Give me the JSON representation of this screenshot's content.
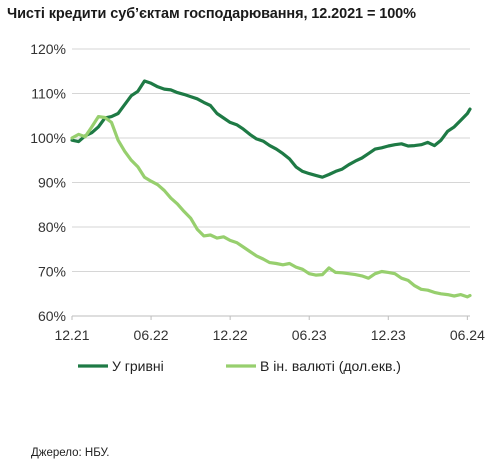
{
  "title": "Чисті кредити суб’єктам господарювання, 12.2021 = 100%",
  "source": "Джерело: НБУ.",
  "chart_data": {
    "type": "line",
    "title": "Чисті кредити суб’єктам господарювання, 12.2021 = 100%",
    "ylabel": "",
    "xlabel": "",
    "ylim": [
      60,
      120
    ],
    "yticks": [
      60,
      70,
      80,
      90,
      100,
      110,
      120
    ],
    "ytick_labels": [
      "60%",
      "70%",
      "80%",
      "90%",
      "100%",
      "110%",
      "120%"
    ],
    "xlim": [
      0,
      30.2
    ],
    "xticks": [
      0,
      6,
      12,
      18,
      24,
      30
    ],
    "xtick_labels": [
      "12.21",
      "06.22",
      "12.22",
      "06.23",
      "12.23",
      "06.24"
    ],
    "grid": "horizontal",
    "legend": "bottom",
    "series": [
      {
        "name": "У гривні",
        "color": "#1e7a45",
        "x": [
          0,
          0.5,
          1,
          1.5,
          2,
          2.5,
          3,
          3.5,
          4,
          4.5,
          5,
          5.5,
          6,
          6.5,
          7,
          7.5,
          8,
          8.5,
          9,
          9.5,
          10,
          10.5,
          11,
          11.5,
          12,
          12.5,
          13,
          13.5,
          14,
          14.5,
          15,
          15.5,
          16,
          16.5,
          17,
          17.5,
          18,
          18.5,
          19,
          19.5,
          20,
          20.5,
          21,
          21.5,
          22,
          22.5,
          23,
          23.5,
          24,
          24.5,
          25,
          25.5,
          26,
          26.5,
          27,
          27.5,
          28,
          28.5,
          29,
          29.5,
          30,
          30.2
        ],
        "values": [
          99.5,
          99.2,
          100.5,
          101.2,
          102.5,
          104.5,
          104.8,
          105.5,
          107.5,
          109.5,
          110.5,
          112.8,
          112.3,
          111.5,
          111.0,
          110.8,
          110.2,
          109.8,
          109.3,
          108.8,
          108.0,
          107.3,
          105.5,
          104.5,
          103.5,
          103.0,
          102.0,
          100.8,
          99.8,
          99.3,
          98.3,
          97.5,
          96.5,
          95.3,
          93.5,
          92.5,
          92.0,
          91.6,
          91.2,
          91.8,
          92.5,
          93.0,
          94.0,
          94.8,
          95.5,
          96.5,
          97.5,
          97.8,
          98.2,
          98.5,
          98.7,
          98.2,
          98.3,
          98.5,
          99.0,
          98.3,
          99.5,
          101.5,
          102.5,
          104.0,
          105.5,
          106.5
        ]
      },
      {
        "name": "В ін. валюті (дол.екв.)",
        "color": "#97cf6e",
        "x": [
          0,
          0.5,
          1,
          1.5,
          2,
          2.5,
          3,
          3.5,
          4,
          4.5,
          5,
          5.5,
          6,
          6.5,
          7,
          7.5,
          8,
          8.5,
          9,
          9.5,
          10,
          10.5,
          11,
          11.5,
          12,
          12.5,
          13,
          13.5,
          14,
          14.5,
          15,
          15.5,
          16,
          16.5,
          17,
          17.5,
          18,
          18.5,
          19,
          19.5,
          20,
          20.5,
          21,
          21.5,
          22,
          22.5,
          23,
          23.5,
          24,
          24.5,
          25,
          25.5,
          26,
          26.5,
          27,
          27.5,
          28,
          28.5,
          29,
          29.5,
          30,
          30.2
        ],
        "values": [
          100.0,
          100.8,
          100.3,
          102.5,
          104.8,
          104.6,
          103.5,
          99.5,
          97.0,
          95.0,
          93.5,
          91.2,
          90.3,
          89.5,
          88.2,
          86.5,
          85.2,
          83.5,
          82.0,
          79.5,
          78.0,
          78.2,
          77.5,
          77.8,
          77.0,
          76.5,
          75.5,
          74.5,
          73.5,
          72.8,
          72.0,
          71.8,
          71.5,
          71.8,
          71.0,
          70.5,
          69.5,
          69.2,
          69.3,
          70.8,
          69.8,
          69.7,
          69.5,
          69.3,
          69.0,
          68.5,
          69.5,
          70.0,
          69.8,
          69.5,
          68.5,
          68.0,
          66.8,
          66.0,
          65.8,
          65.3,
          65.0,
          64.8,
          64.5,
          64.8,
          64.3,
          64.6
        ]
      }
    ]
  }
}
